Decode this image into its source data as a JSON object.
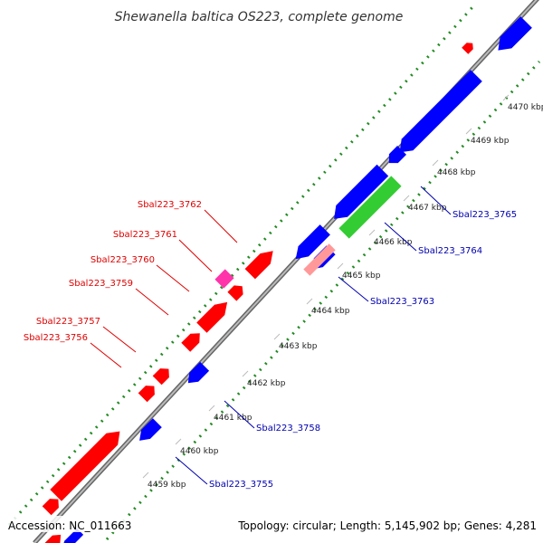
{
  "title": "Shewanella baltica OS223, complete genome",
  "footer": {
    "accession": "Accession: NC_011663",
    "summary": "Topology: circular; Length: 5,145,902 bp; Genes: 4,281"
  },
  "colors": {
    "forward_gene": "#ff0000",
    "reverse_gene": "#0000ff",
    "rrna_like": "#33cc33",
    "pseudo_like": "#ff9999",
    "trna_like": "#ff33aa",
    "backbone": "#888888",
    "gc_dots": "#228b22",
    "forward_label": "#e00000",
    "reverse_label": "#0000b0"
  },
  "ticks": [
    {
      "label": "4459 kbp"
    },
    {
      "label": "4460 kbp"
    },
    {
      "label": "4461 kbp"
    },
    {
      "label": "4462 kbp"
    },
    {
      "label": "4463 kbp"
    },
    {
      "label": "4464 kbp"
    },
    {
      "label": "4465 kbp"
    },
    {
      "label": "4466 kbp"
    },
    {
      "label": "4467 kbp"
    },
    {
      "label": "4468 kbp"
    },
    {
      "label": "4469 kbp"
    },
    {
      "label": "4470 kbp"
    }
  ],
  "forward_labels": [
    "Sbal223_3762",
    "Sbal223_3761",
    "Sbal223_3760",
    "Sbal223_3759",
    "Sbal223_3757",
    "Sbal223_3756"
  ],
  "reverse_labels": [
    "Sbal223_3765",
    "Sbal223_3764",
    "Sbal223_3763",
    "Sbal223_3758",
    "Sbal223_3755"
  ]
}
